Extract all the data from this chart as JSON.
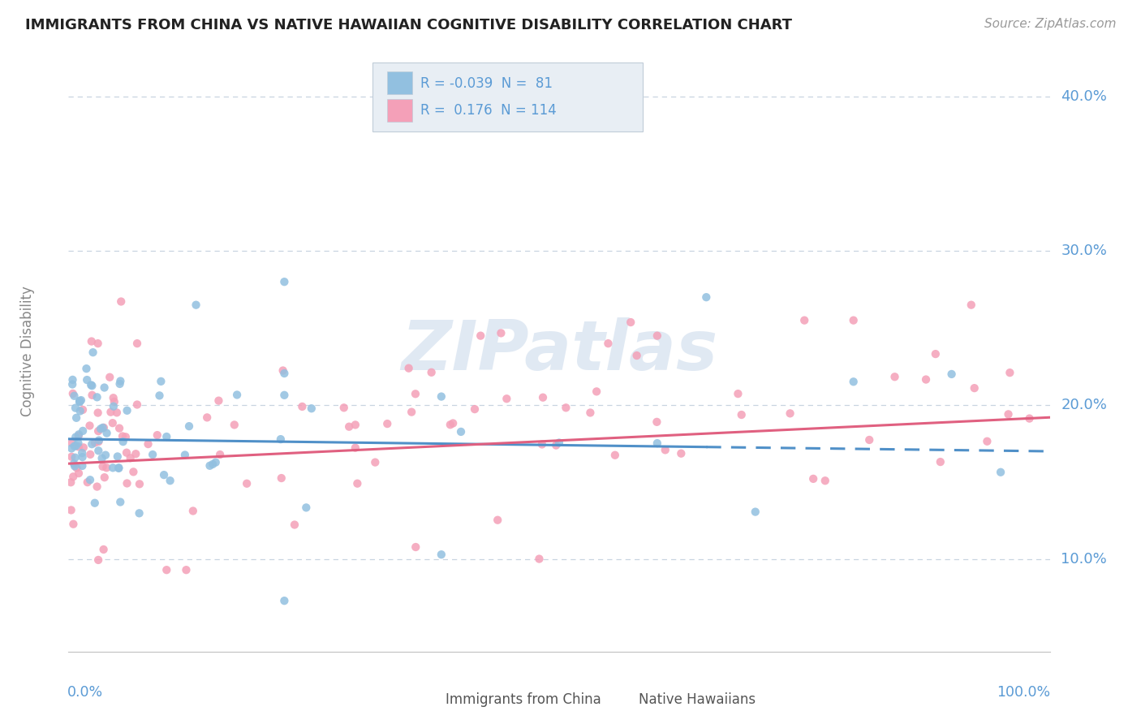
{
  "title": "IMMIGRANTS FROM CHINA VS NATIVE HAWAIIAN COGNITIVE DISABILITY CORRELATION CHART",
  "source": "Source: ZipAtlas.com",
  "ylabel": "Cognitive Disability",
  "ytick_labels": [
    "10.0%",
    "20.0%",
    "30.0%",
    "40.0%"
  ],
  "ytick_values": [
    0.1,
    0.2,
    0.3,
    0.4
  ],
  "xlim": [
    0.0,
    1.0
  ],
  "ylim": [
    0.04,
    0.43
  ],
  "china_color": "#92c0e0",
  "hawaii_color": "#f4a0b8",
  "china_line_color": "#5090c8",
  "hawaii_line_color": "#e06080",
  "background_color": "#ffffff",
  "grid_color": "#c8d4e0",
  "title_color": "#222222",
  "ytick_color": "#5b9bd5",
  "watermark_color": "#c8d8ea",
  "source_color": "#999999",
  "ylabel_color": "#888888",
  "bottom_label_color": "#555555",
  "legend_box_color": "#e8eef4",
  "legend_border_color": "#c0ccd8"
}
